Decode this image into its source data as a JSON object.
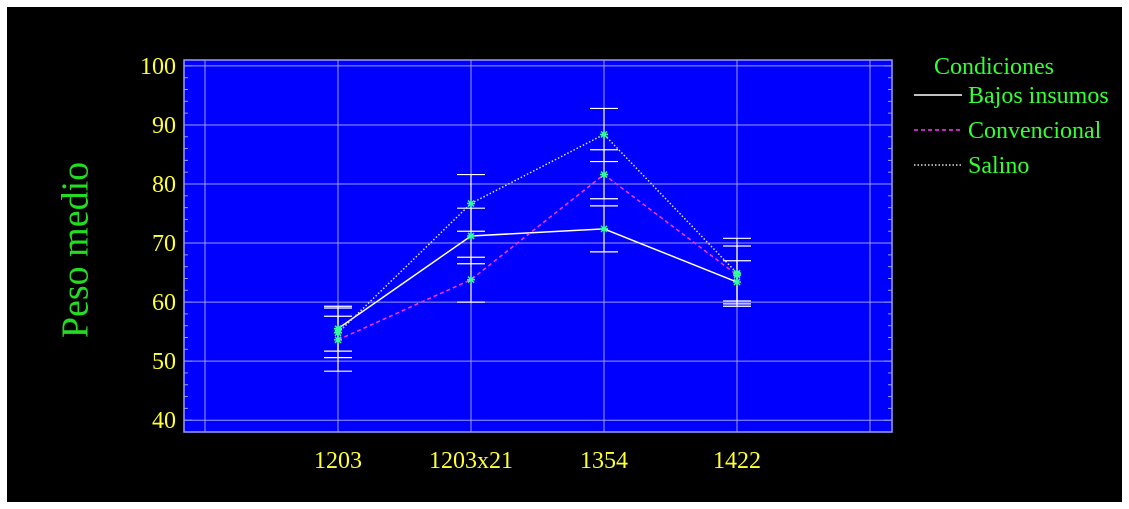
{
  "chart_data": {
    "type": "line",
    "title": "",
    "xlabel": "",
    "ylabel": "Peso medio",
    "categories": [
      "1203",
      "1203x21",
      "1354",
      "1422"
    ],
    "ylim": [
      38,
      101
    ],
    "yticks": [
      40,
      50,
      60,
      70,
      80,
      90,
      100
    ],
    "grid": true,
    "legend": {
      "title": "Condiciones",
      "position": "right"
    },
    "series": [
      {
        "name": "Bajos insumos",
        "color": "#ffffff",
        "dash": "solid",
        "values": [
          55.5,
          71.2,
          72.4,
          63.4
        ],
        "error_low": [
          51.7,
          66.5,
          68.5,
          60.2
        ],
        "error_high": [
          59.3,
          75.9,
          76.3,
          67.0
        ]
      },
      {
        "name": "Convencional",
        "color": "#ff33ff",
        "dash": "dashed",
        "values": [
          53.6,
          63.8,
          81.6,
          64.6
        ],
        "error_low": [
          48.3,
          60.0,
          77.5,
          59.7
        ],
        "error_high": [
          57.6,
          67.6,
          85.8,
          69.5
        ]
      },
      {
        "name": "Salino",
        "color": "#dddddd",
        "dash": "dotted",
        "values": [
          54.8,
          76.7,
          88.4,
          64.9
        ],
        "error_low": [
          50.6,
          72.0,
          83.8,
          59.3
        ],
        "error_high": [
          59.0,
          81.6,
          92.8,
          70.8
        ]
      }
    ],
    "colors": {
      "background": "#000000",
      "plot_area": "#0000ff",
      "tick_labels": "#ffff33",
      "legend_text": "#33ff33",
      "ylabel": "#22dd22",
      "marker": "#33ff99",
      "grid": "#9a9aff"
    }
  }
}
